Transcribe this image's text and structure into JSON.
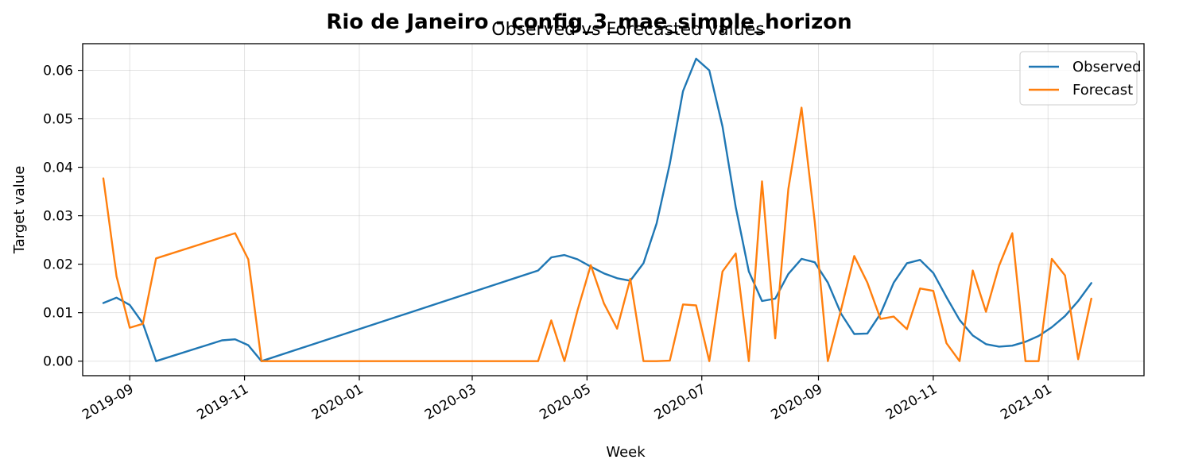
{
  "chart_data": {
    "type": "line",
    "title": "Rio de Janeiro - config_3_mae_simple_horizon",
    "subtitle": "Observed vs Forecasted values",
    "xlabel": "Week",
    "ylabel": "Target value",
    "x_axis_type": "date",
    "xlim": [
      "2019-08-07",
      "2021-02-21"
    ],
    "ylim": [
      -0.003,
      0.0655
    ],
    "x_ticks": [
      "2019-09-01",
      "2019-11-01",
      "2020-01-01",
      "2020-03-01",
      "2020-05-01",
      "2020-07-01",
      "2020-09-01",
      "2020-11-01",
      "2021-01-01"
    ],
    "x_tick_labels": [
      "2019-09",
      "2019-11",
      "2020-01",
      "2020-03",
      "2020-05",
      "2020-07",
      "2020-09",
      "2020-11",
      "2021-01"
    ],
    "y_ticks": [
      0.0,
      0.01,
      0.02,
      0.03,
      0.04,
      0.05,
      0.06
    ],
    "y_tick_labels": [
      "0.00",
      "0.01",
      "0.02",
      "0.03",
      "0.04",
      "0.05",
      "0.06"
    ],
    "grid": true,
    "legend_position": "top-right",
    "series": [
      {
        "name": "Observed",
        "color": "#1f77b4",
        "points": [
          [
            "2019-08-18",
            0.012
          ],
          [
            "2019-08-25",
            0.0131
          ],
          [
            "2019-09-01",
            0.0116
          ],
          [
            "2019-09-08",
            0.0078
          ],
          [
            "2019-09-15",
            0.0
          ],
          [
            "2019-10-20",
            0.0043
          ],
          [
            "2019-10-27",
            0.0045
          ],
          [
            "2019-11-03",
            0.0033
          ],
          [
            "2019-11-10",
            0.0
          ],
          [
            "2020-04-05",
            0.0187
          ],
          [
            "2020-04-12",
            0.0214
          ],
          [
            "2020-04-19",
            0.0219
          ],
          [
            "2020-04-26",
            0.021
          ],
          [
            "2020-05-03",
            0.0195
          ],
          [
            "2020-05-10",
            0.0181
          ],
          [
            "2020-05-17",
            0.0171
          ],
          [
            "2020-05-24",
            0.0166
          ],
          [
            "2020-05-31",
            0.0202
          ],
          [
            "2020-06-07",
            0.0284
          ],
          [
            "2020-06-14",
            0.0407
          ],
          [
            "2020-06-21",
            0.0557
          ],
          [
            "2020-06-28",
            0.0624
          ],
          [
            "2020-07-05",
            0.06
          ],
          [
            "2020-07-12",
            0.0484
          ],
          [
            "2020-07-19",
            0.0318
          ],
          [
            "2020-07-26",
            0.0185
          ],
          [
            "2020-08-02",
            0.0124
          ],
          [
            "2020-08-09",
            0.0129
          ],
          [
            "2020-08-16",
            0.018
          ],
          [
            "2020-08-23",
            0.0211
          ],
          [
            "2020-08-30",
            0.0204
          ],
          [
            "2020-09-06",
            0.0162
          ],
          [
            "2020-09-13",
            0.0098
          ],
          [
            "2020-09-20",
            0.0056
          ],
          [
            "2020-09-27",
            0.0057
          ],
          [
            "2020-10-04",
            0.0098
          ],
          [
            "2020-10-11",
            0.0162
          ],
          [
            "2020-10-18",
            0.0202
          ],
          [
            "2020-10-25",
            0.0209
          ],
          [
            "2020-11-01",
            0.0182
          ],
          [
            "2020-11-08",
            0.0132
          ],
          [
            "2020-11-15",
            0.0085
          ],
          [
            "2020-11-22",
            0.0053
          ],
          [
            "2020-11-29",
            0.0035
          ],
          [
            "2020-12-06",
            0.003
          ],
          [
            "2020-12-13",
            0.0032
          ],
          [
            "2020-12-20",
            0.004
          ],
          [
            "2020-12-27",
            0.0052
          ],
          [
            "2021-01-03",
            0.007
          ],
          [
            "2021-01-10",
            0.0093
          ],
          [
            "2021-01-17",
            0.0124
          ],
          [
            "2021-01-24",
            0.0161
          ]
        ]
      },
      {
        "name": "Forecast",
        "color": "#ff7f0e",
        "points": [
          [
            "2019-08-18",
            0.0377
          ],
          [
            "2019-08-25",
            0.0175
          ],
          [
            "2019-09-01",
            0.0069
          ],
          [
            "2019-09-08",
            0.0077
          ],
          [
            "2019-09-15",
            0.0212
          ],
          [
            "2019-10-27",
            0.0264
          ],
          [
            "2019-11-03",
            0.021
          ],
          [
            "2019-11-10",
            0.0
          ],
          [
            "2020-04-05",
            0.0
          ],
          [
            "2020-04-12",
            0.0084
          ],
          [
            "2020-04-19",
            0.0
          ],
          [
            "2020-04-26",
            0.0105
          ],
          [
            "2020-05-03",
            0.0198
          ],
          [
            "2020-05-10",
            0.0119
          ],
          [
            "2020-05-17",
            0.0067
          ],
          [
            "2020-05-24",
            0.017
          ],
          [
            "2020-05-31",
            0.0
          ],
          [
            "2020-06-07",
            0.0
          ],
          [
            "2020-06-14",
            0.0001
          ],
          [
            "2020-06-21",
            0.0117
          ],
          [
            "2020-06-28",
            0.0115
          ],
          [
            "2020-07-05",
            0.0
          ],
          [
            "2020-07-12",
            0.0185
          ],
          [
            "2020-07-19",
            0.0222
          ],
          [
            "2020-07-26",
            0.0
          ],
          [
            "2020-08-02",
            0.0371
          ],
          [
            "2020-08-09",
            0.0047
          ],
          [
            "2020-08-16",
            0.0355
          ],
          [
            "2020-08-23",
            0.0523
          ],
          [
            "2020-08-30",
            0.0288
          ],
          [
            "2020-09-06",
            0.0
          ],
          [
            "2020-09-13",
            0.0106
          ],
          [
            "2020-09-20",
            0.0217
          ],
          [
            "2020-09-27",
            0.0162
          ],
          [
            "2020-10-04",
            0.0087
          ],
          [
            "2020-10-11",
            0.0092
          ],
          [
            "2020-10-18",
            0.0066
          ],
          [
            "2020-10-25",
            0.015
          ],
          [
            "2020-11-01",
            0.0145
          ],
          [
            "2020-11-08",
            0.0037
          ],
          [
            "2020-11-15",
            0.0
          ],
          [
            "2020-11-22",
            0.0187
          ],
          [
            "2020-11-29",
            0.0102
          ],
          [
            "2020-12-06",
            0.0197
          ],
          [
            "2020-12-13",
            0.0264
          ],
          [
            "2020-12-20",
            0.0
          ],
          [
            "2020-12-27",
            0.0
          ],
          [
            "2021-01-03",
            0.0211
          ],
          [
            "2021-01-10",
            0.0177
          ],
          [
            "2021-01-17",
            0.0004
          ],
          [
            "2021-01-24",
            0.0129
          ]
        ]
      }
    ]
  }
}
